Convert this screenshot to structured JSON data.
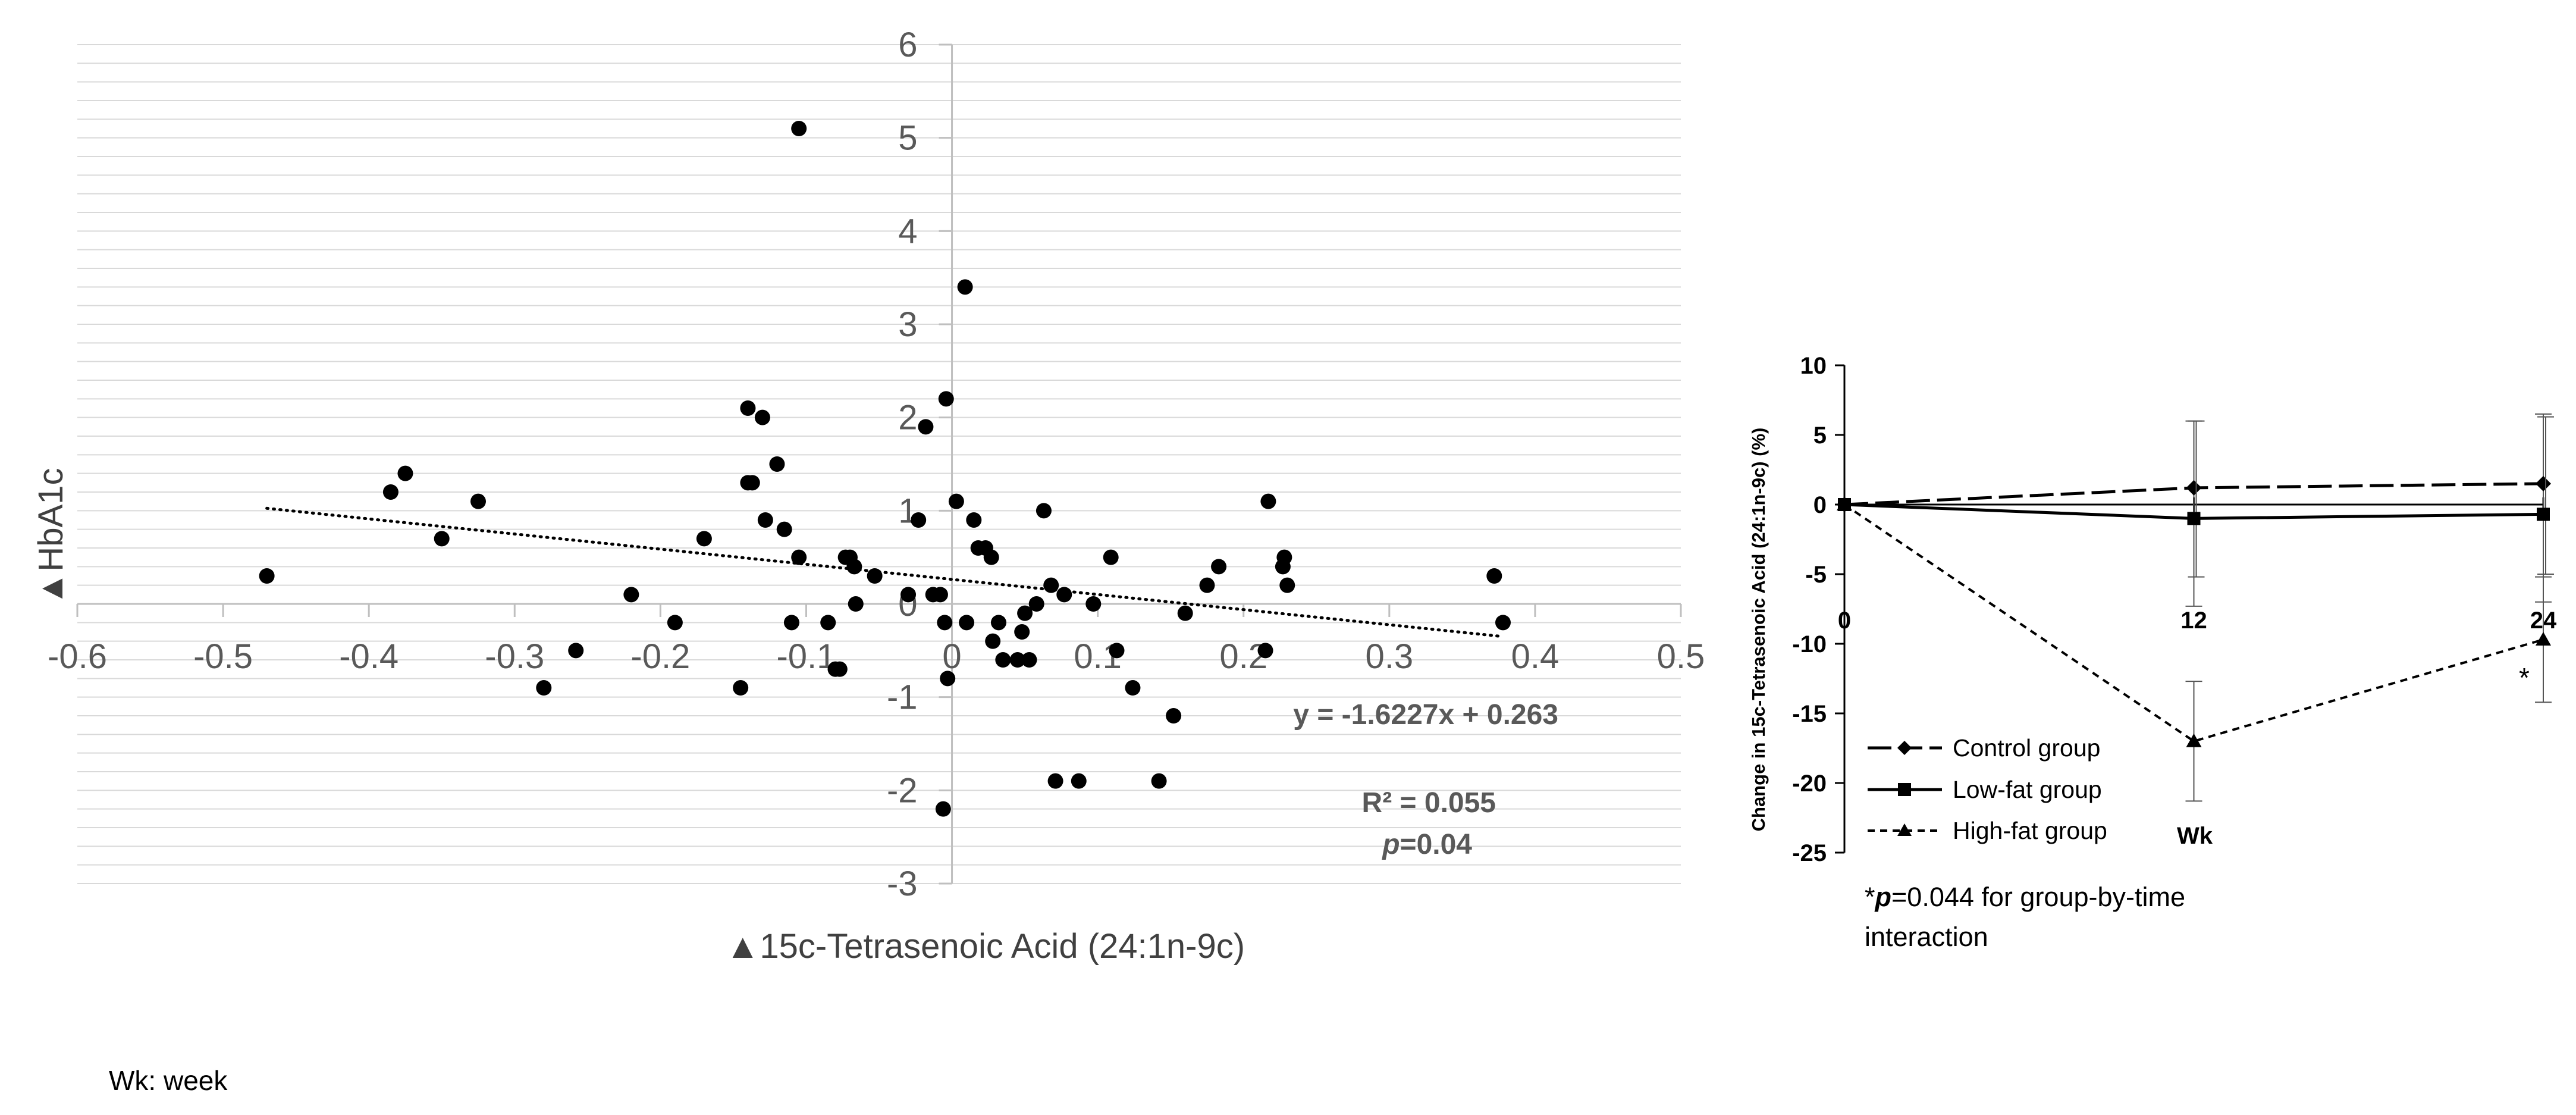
{
  "chart_data": [
    {
      "type": "scatter",
      "title": "",
      "xlabel": "▲15c-Tetrasenoic Acid (24:1n-9c)",
      "ylabel": "▲HbA1c",
      "xlim": [
        -0.6,
        0.5
      ],
      "ylim": [
        -3,
        6
      ],
      "x_ticks": [
        "-0.6",
        "-0.5",
        "-0.4",
        "-0.3",
        "-0.2",
        "-0.1",
        "0",
        "0.1",
        "0.2",
        "0.3",
        "0.4",
        "0.5"
      ],
      "y_ticks": [
        "-3",
        "-2",
        "-1",
        "0",
        "1",
        "2",
        "3",
        "4",
        "5",
        "6"
      ],
      "minor_gridline_step": 0.2,
      "trendline": {
        "slope": -1.6227,
        "intercept": 0.263,
        "x_range": [
          -0.47,
          0.375
        ]
      },
      "equation": "y = -1.6227x + 0.263",
      "r_squared": "R² = 0.055",
      "p_label": "p",
      "p_value": "=0.04",
      "points": [
        [
          -0.47,
          0.3
        ],
        [
          -0.385,
          1.2
        ],
        [
          -0.375,
          1.4
        ],
        [
          -0.35,
          0.7
        ],
        [
          -0.325,
          1.1
        ],
        [
          -0.28,
          -0.9
        ],
        [
          -0.258,
          -0.5
        ],
        [
          -0.22,
          0.1
        ],
        [
          -0.19,
          -0.2
        ],
        [
          -0.17,
          0.7
        ],
        [
          -0.145,
          -0.9
        ],
        [
          -0.14,
          2.1
        ],
        [
          -0.14,
          1.3
        ],
        [
          -0.137,
          1.3
        ],
        [
          -0.13,
          2.0
        ],
        [
          -0.128,
          0.9
        ],
        [
          -0.12,
          1.5
        ],
        [
          -0.115,
          0.8
        ],
        [
          -0.11,
          -0.2
        ],
        [
          -0.105,
          5.1
        ],
        [
          -0.105,
          0.5
        ],
        [
          -0.085,
          -0.2
        ],
        [
          -0.08,
          -0.7
        ],
        [
          -0.077,
          -0.7
        ],
        [
          -0.073,
          0.5
        ],
        [
          -0.07,
          0.5
        ],
        [
          -0.067,
          0.4
        ],
        [
          -0.066,
          0.0
        ],
        [
          -0.053,
          0.3
        ],
        [
          -0.03,
          0.1
        ],
        [
          -0.023,
          0.9
        ],
        [
          -0.018,
          1.9
        ],
        [
          -0.013,
          0.1
        ],
        [
          -0.008,
          0.1
        ],
        [
          -0.004,
          2.2
        ],
        [
          -0.005,
          -0.2
        ],
        [
          -0.003,
          -0.8
        ],
        [
          -0.006,
          -2.2
        ],
        [
          0.003,
          1.1
        ],
        [
          0.009,
          3.4
        ],
        [
          0.01,
          -0.2
        ],
        [
          0.015,
          0.9
        ],
        [
          0.018,
          0.6
        ],
        [
          0.023,
          0.6
        ],
        [
          0.027,
          0.5
        ],
        [
          0.028,
          -0.4
        ],
        [
          0.032,
          -0.2
        ],
        [
          0.035,
          -0.6
        ],
        [
          0.045,
          -0.6
        ],
        [
          0.048,
          -0.3
        ],
        [
          0.05,
          -0.1
        ],
        [
          0.053,
          -0.6
        ],
        [
          0.058,
          0.0
        ],
        [
          0.063,
          1.0
        ],
        [
          0.068,
          0.2
        ],
        [
          0.071,
          -1.9
        ],
        [
          0.077,
          0.1
        ],
        [
          0.087,
          -1.9
        ],
        [
          0.097,
          0.0
        ],
        [
          0.109,
          0.5
        ],
        [
          0.113,
          -0.5
        ],
        [
          0.124,
          -0.9
        ],
        [
          0.142,
          -1.9
        ],
        [
          0.152,
          -1.2
        ],
        [
          0.16,
          -0.1
        ],
        [
          0.175,
          0.2
        ],
        [
          0.183,
          0.4
        ],
        [
          0.215,
          -0.5
        ],
        [
          0.217,
          1.1
        ],
        [
          0.227,
          0.4
        ],
        [
          0.228,
          0.5
        ],
        [
          0.23,
          0.2
        ],
        [
          0.372,
          0.3
        ],
        [
          0.378,
          -0.2
        ]
      ]
    },
    {
      "type": "line",
      "ylabel": "Change in 15c-Tetrasenoic Acid (24:1n-9c) (%)",
      "xlabel": "Wk",
      "x": [
        0,
        12,
        24
      ],
      "x_ticks": [
        "0",
        "12",
        "24"
      ],
      "y_ticks": [
        "10",
        "5",
        "0",
        "-5",
        "-10",
        "-15",
        "-20",
        "-25"
      ],
      "xlim": [
        0,
        24
      ],
      "ylim": [
        -25,
        10
      ],
      "series": [
        {
          "name": "Control group",
          "values": [
            0,
            1.2,
            1.5
          ],
          "err_low": [
            0,
            8.5,
            8.5
          ],
          "err_high": [
            0,
            4.8,
            5.0
          ],
          "style": "long-dash",
          "marker": "diamond"
        },
        {
          "name": "Low-fat group",
          "values": [
            0,
            -1.0,
            -0.7
          ],
          "err_low": [
            0,
            4.2,
            4.3
          ],
          "err_high": [
            0,
            7.0,
            7.0
          ],
          "style": "solid",
          "marker": "square"
        },
        {
          "name": "High-fat group",
          "values": [
            0,
            -17.0,
            -9.7
          ],
          "err_low": [
            0,
            4.3,
            4.5
          ],
          "err_high": [
            0,
            4.3,
            4.5
          ],
          "style": "short-dash",
          "marker": "triangle"
        }
      ],
      "asterisk": "*",
      "footnote_star": "*",
      "footnote_p": "p",
      "footnote_line1": "=0.044 for group-by-time",
      "footnote_line2": "interaction"
    }
  ],
  "wk_note": "Wk: week"
}
